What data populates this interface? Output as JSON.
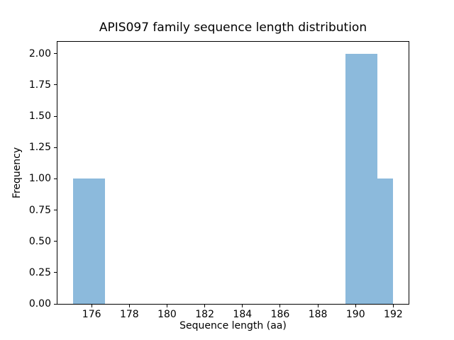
{
  "chart_data": {
    "type": "bar",
    "subtype": "histogram",
    "title": "APIS097 family sequence length distribution",
    "xlabel": "Sequence length (aa)",
    "ylabel": "Frequency",
    "bars": [
      {
        "x_start": 175.0,
        "x_end": 176.7,
        "frequency": 1
      },
      {
        "x_start": 189.45,
        "x_end": 191.15,
        "frequency": 2
      },
      {
        "x_start": 191.15,
        "x_end": 192.0,
        "frequency": 1
      }
    ],
    "xtick_values": [
      176,
      178,
      180,
      182,
      184,
      186,
      188,
      190,
      192
    ],
    "xtick_labels": [
      "176",
      "178",
      "180",
      "182",
      "184",
      "186",
      "188",
      "190",
      "192"
    ],
    "ytick_values": [
      0,
      0.25,
      0.5,
      0.75,
      1.0,
      1.25,
      1.5,
      1.75,
      2.0
    ],
    "ytick_labels": [
      "0.00",
      "0.25",
      "0.50",
      "0.75",
      "1.00",
      "1.25",
      "1.50",
      "1.75",
      "2.00"
    ],
    "xlim": [
      174.15,
      192.85
    ],
    "ylim": [
      0,
      2.1
    ],
    "bar_color": "#8cbadc",
    "background_color": "#ffffff",
    "spine_color": "#000000",
    "grid": false,
    "legend": null
  }
}
